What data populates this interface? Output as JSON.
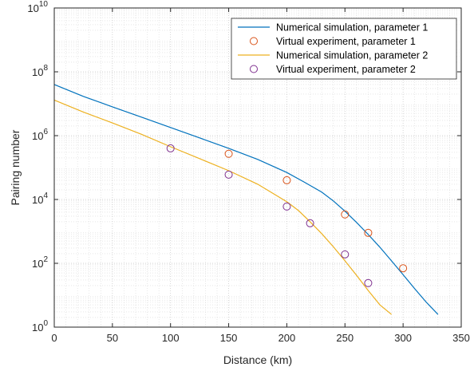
{
  "chart_data": {
    "type": "line",
    "xlabel": "Distance (km)",
    "ylabel": "Pairing number",
    "xlim": [
      0,
      350
    ],
    "ylim": [
      1,
      10000000000
    ],
    "yscale": "log",
    "grid": "major and minor",
    "legend_position": "top-right",
    "xticks": [
      "0",
      "50",
      "100",
      "150",
      "200",
      "250",
      "300",
      "350"
    ],
    "yticks": [
      {
        "base": "10",
        "exp": "0"
      },
      {
        "base": "10",
        "exp": "2"
      },
      {
        "base": "10",
        "exp": "4"
      },
      {
        "base": "10",
        "exp": "6"
      },
      {
        "base": "10",
        "exp": "8"
      },
      {
        "base": "10",
        "exp": "10"
      }
    ],
    "series": [
      {
        "name": "Numerical simulation, parameter 1",
        "style": "line",
        "color": "#0072BD",
        "x": [
          0,
          25,
          50,
          75,
          100,
          125,
          150,
          175,
          200,
          215,
          230,
          240,
          250,
          260,
          270,
          280,
          290,
          300,
          310,
          320,
          330
        ],
        "y": [
          40000000,
          17000000,
          8000000,
          3800000,
          1800000,
          850000,
          400000,
          180000,
          70000,
          35000,
          17000,
          9000,
          4300,
          1900,
          800,
          320,
          120,
          44,
          16,
          6,
          2.5
        ]
      },
      {
        "name": "Virtual experiment, parameter 1",
        "style": "marker",
        "color": "#D95319",
        "x": [
          150,
          200,
          250,
          270,
          300
        ],
        "y": [
          270000,
          40000,
          3400,
          900,
          70
        ]
      },
      {
        "name": "Numerical simulation, parameter 2",
        "style": "line",
        "color": "#EDB120",
        "x": [
          0,
          25,
          50,
          75,
          100,
          125,
          150,
          175,
          200,
          210,
          220,
          230,
          240,
          250,
          260,
          270,
          280,
          290
        ],
        "y": [
          13000000,
          5500000,
          2500000,
          1100000,
          450000,
          190000,
          80000,
          30000,
          8500,
          4500,
          2000,
          850,
          330,
          120,
          42,
          14,
          5,
          2.5
        ]
      },
      {
        "name": "Virtual experiment, parameter 2",
        "style": "marker",
        "color": "#7E2F8E",
        "x": [
          100,
          150,
          200,
          220,
          250,
          270
        ],
        "y": [
          400000,
          60000,
          6000,
          1800,
          190,
          24
        ]
      }
    ]
  }
}
